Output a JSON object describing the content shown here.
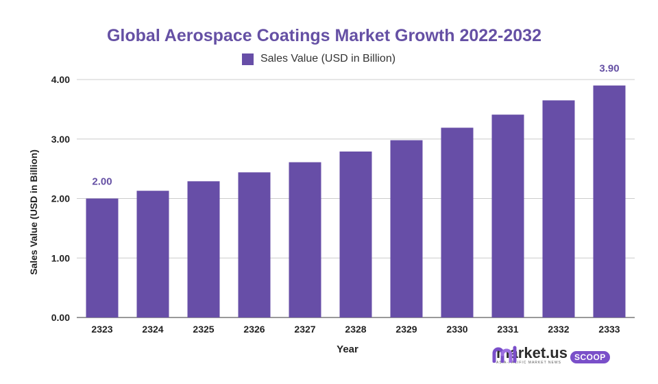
{
  "chart_data": {
    "type": "bar",
    "title": "Global Aerospace Coatings Market Growth 2022-2032",
    "xlabel": "Year",
    "ylabel": "Sales Value (USD in Billion)",
    "categories": [
      "2323",
      "2324",
      "2325",
      "2326",
      "2327",
      "2328",
      "2329",
      "2330",
      "2331",
      "2332",
      "2333"
    ],
    "series": [
      {
        "name": "Sales Value (USD in Billion)",
        "values": [
          2.0,
          2.13,
          2.29,
          2.44,
          2.61,
          2.79,
          2.98,
          3.19,
          3.41,
          3.65,
          3.9
        ]
      }
    ],
    "data_labels": {
      "first": "2.00",
      "last": "3.90"
    },
    "ylim": [
      0,
      4
    ],
    "yticks": [
      "0.00",
      "1.00",
      "2.00",
      "3.00",
      "4.00"
    ],
    "grid": true,
    "legend_position": "top-center",
    "bar_color": "#674ea7",
    "title_color": "#6550a4"
  },
  "logo": {
    "word": "market.us",
    "tagline": "ASIA-PACIFIC MARKET NEWS",
    "badge": "SCOOP",
    "badge_color": "#7a4fc9"
  }
}
